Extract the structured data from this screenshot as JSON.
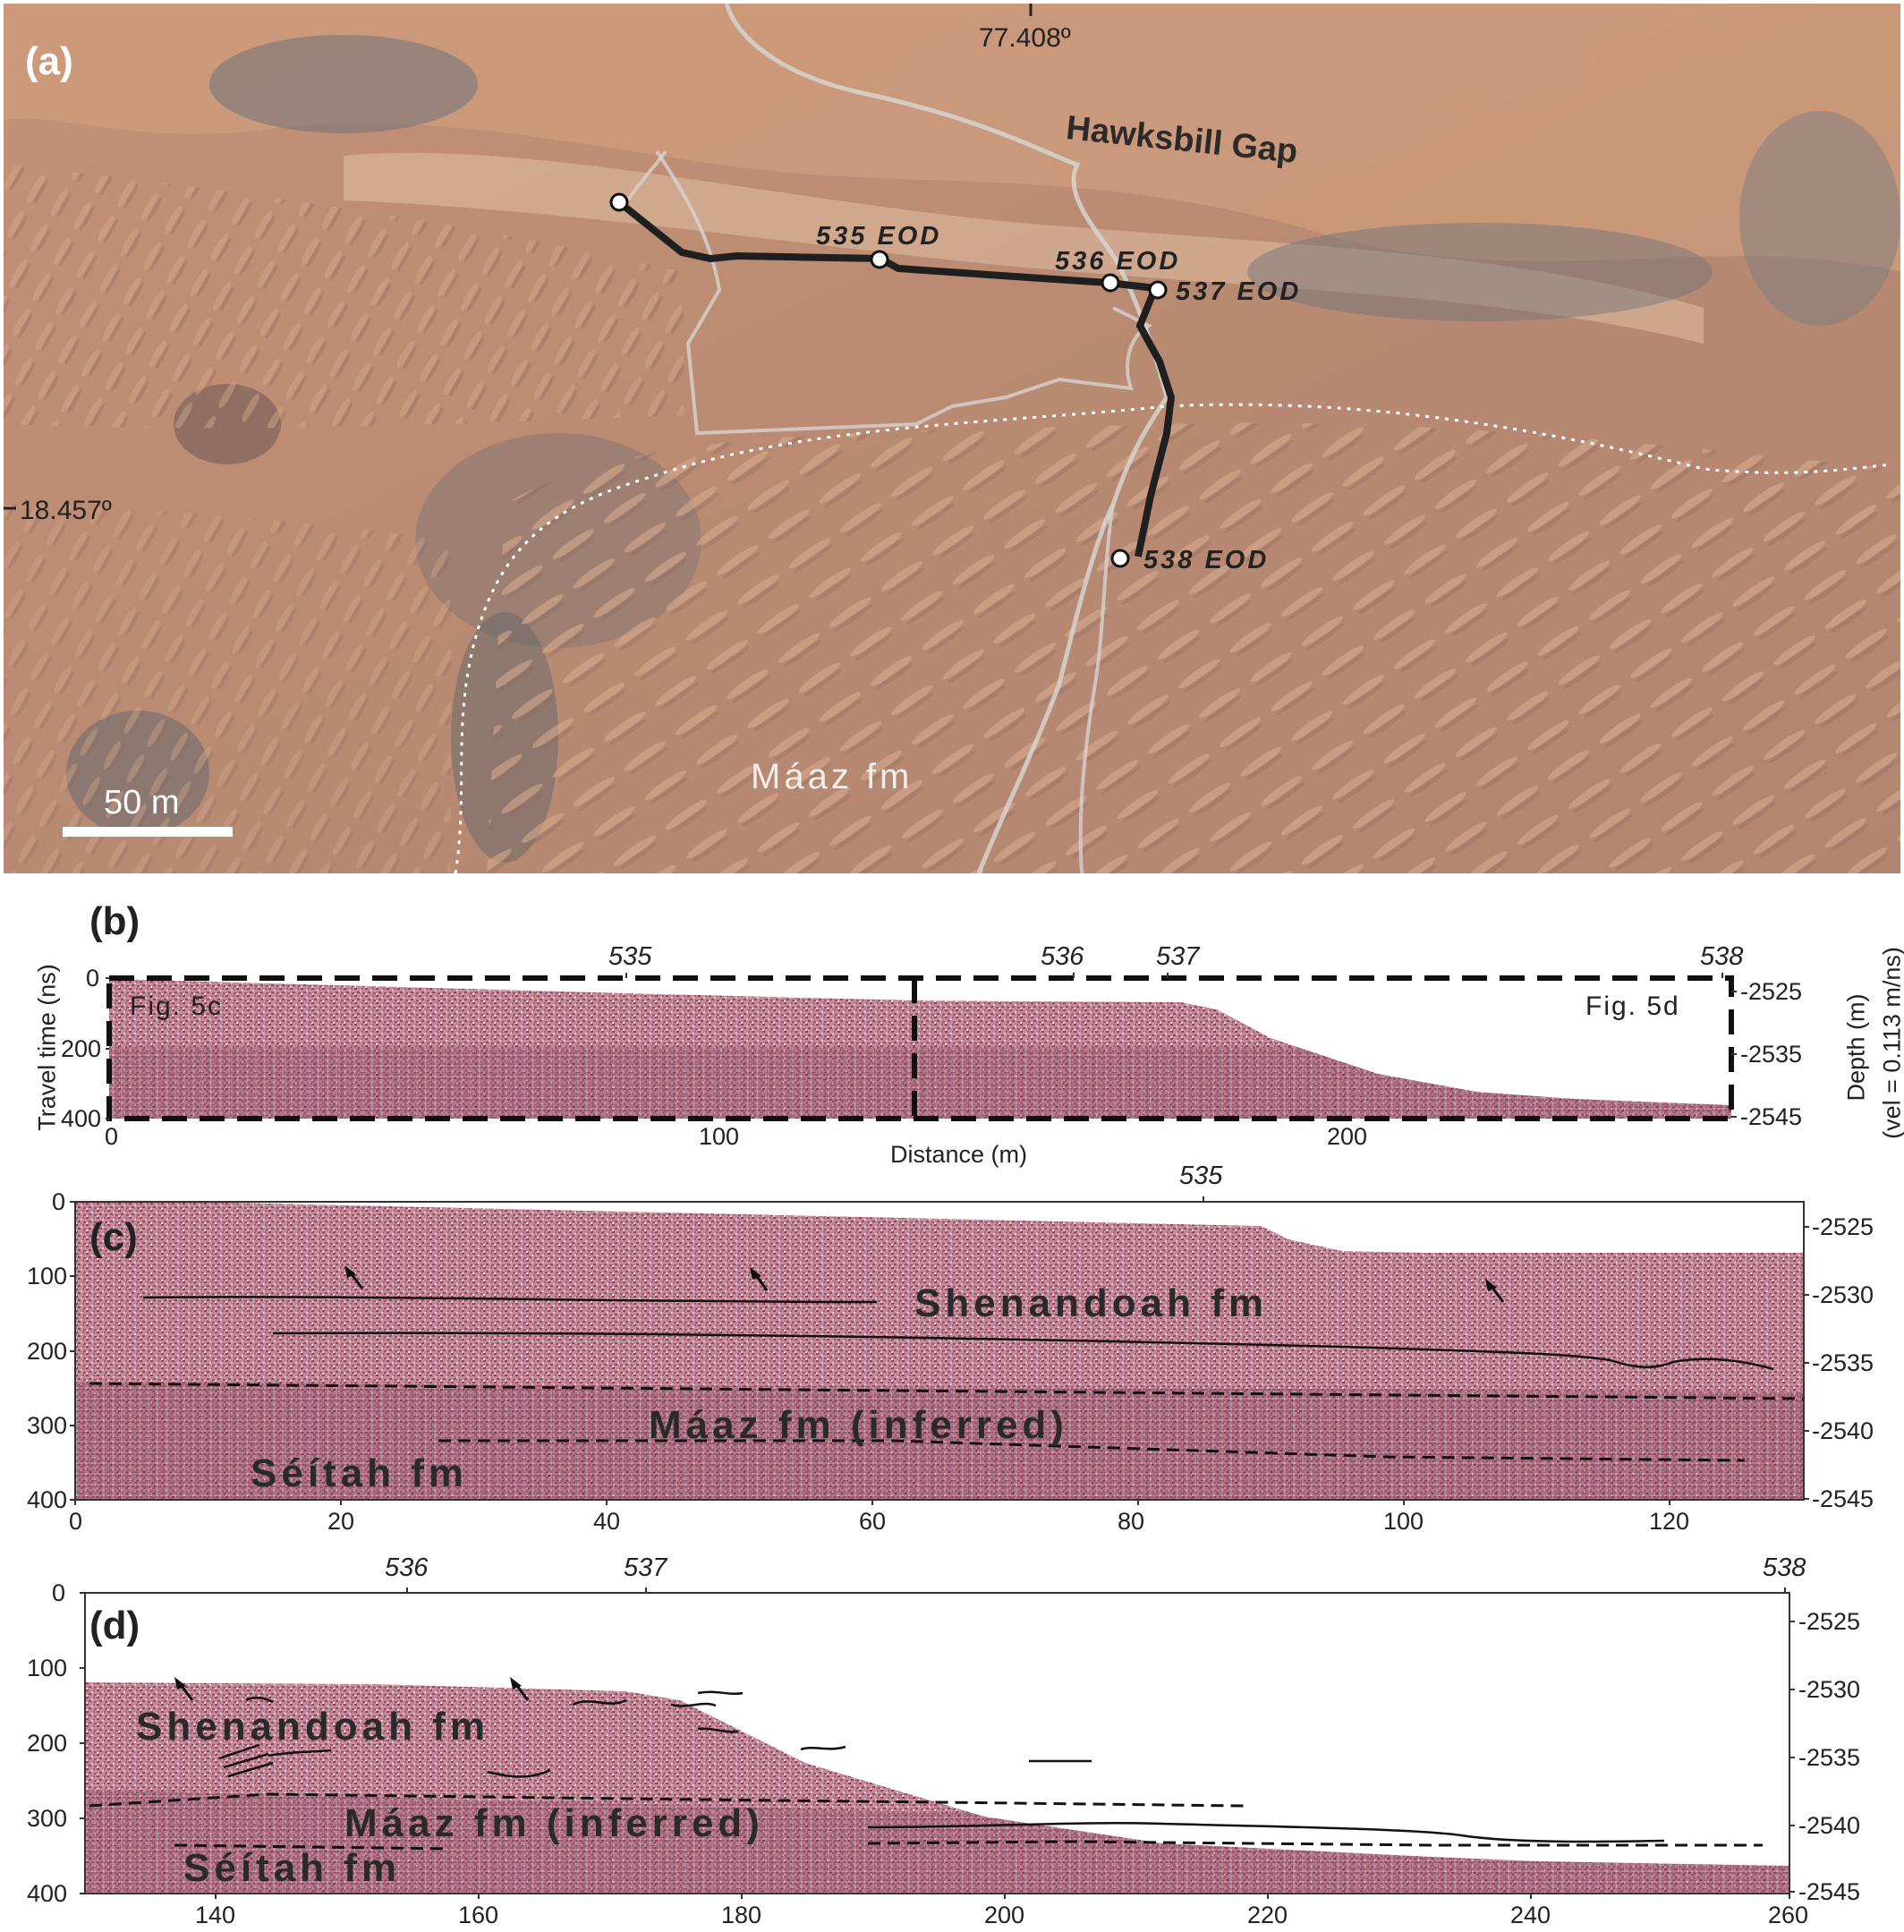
{
  "panel_a": {
    "tag": "(a)",
    "longitude": "77.408º",
    "latitude": "18.457º",
    "place": "Hawksbill Gap",
    "unit": "Máaz fm",
    "scale": "50 m",
    "stops": [
      "535 EOD",
      "536 EOD",
      "537 EOD",
      "538 EOD"
    ]
  },
  "panel_b": {
    "tag": "(b)",
    "ylabel": "Travel time (ns)",
    "xlabel": "Distance (m)",
    "y2label": "Depth (m)",
    "y2note": "(vel = 0.113 m/ns)",
    "box_left": "Fig. 5c",
    "box_right": "Fig. 5d",
    "sols": [
      "535",
      "536",
      "537",
      "538"
    ],
    "yticks": [
      "0",
      "200",
      "400"
    ],
    "xticks": [
      "0",
      "100",
      "200"
    ],
    "depth_ticks": [
      "-2525",
      "-2535",
      "-2545"
    ]
  },
  "panel_c": {
    "tag": "(c)",
    "sol": "535",
    "yticks": [
      "0",
      "100",
      "200",
      "300",
      "400"
    ],
    "xticks": [
      "0",
      "20",
      "40",
      "60",
      "80",
      "100",
      "120"
    ],
    "depth_ticks": [
      "-2525",
      "-2530",
      "-2535",
      "-2540",
      "-2545"
    ],
    "units": [
      "Shenandoah fm",
      "Máaz fm  (inferred)",
      "Séítah fm"
    ]
  },
  "panel_d": {
    "tag": "(d)",
    "sols": [
      "536",
      "537",
      "538"
    ],
    "yticks": [
      "0",
      "100",
      "200",
      "300",
      "400"
    ],
    "xticks": [
      "140",
      "160",
      "180",
      "200",
      "220",
      "240",
      "260"
    ],
    "depth_ticks": [
      "-2525",
      "-2530",
      "-2535",
      "-2540",
      "-2545"
    ],
    "units": [
      "Shenandoah fm",
      "Máaz fm  (inferred)",
      "Séítah fm"
    ]
  },
  "colors": {
    "terrain": "#b8846a",
    "radargram": "#b87a8c",
    "traverse": "#222222"
  }
}
